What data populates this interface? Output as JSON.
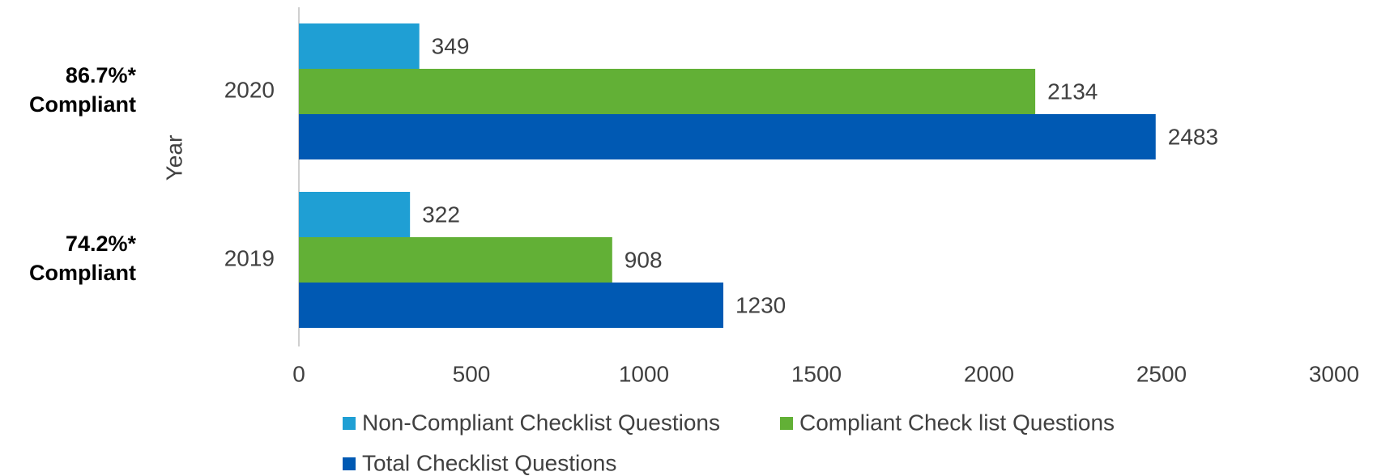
{
  "chart_data": {
    "type": "bar",
    "orientation": "horizontal",
    "categories": [
      "2020",
      "2019"
    ],
    "series": [
      {
        "name": "Non-Compliant Checklist Questions",
        "color": "#1f9fd4",
        "values": [
          349,
          322
        ]
      },
      {
        "name": "Compliant Check list Questions",
        "color": "#62b036",
        "values": [
          2134,
          908
        ]
      },
      {
        "name": "Total Checklist Questions",
        "color": "#0059b3",
        "values": [
          2483,
          1230
        ]
      }
    ],
    "xlim": [
      0,
      3000
    ],
    "xticks": [
      0,
      500,
      1000,
      1500,
      2000,
      2500,
      3000
    ],
    "y_label": "Year",
    "annotations": [
      {
        "lines": [
          "86.7%*",
          "Compliant"
        ]
      },
      {
        "lines": [
          "74.2%*",
          "Compliant"
        ]
      }
    ],
    "grid": false,
    "legend": "bottom"
  }
}
